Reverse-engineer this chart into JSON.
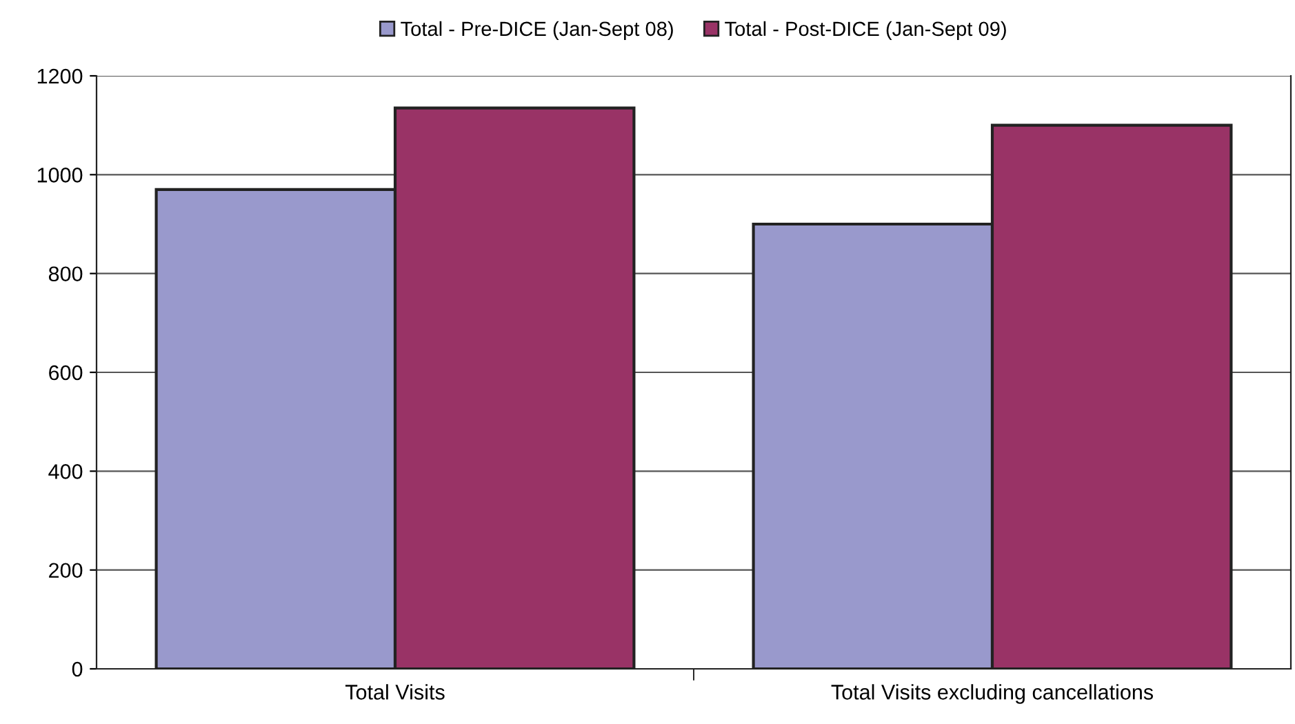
{
  "chart_data": {
    "type": "bar",
    "categories": [
      "Total Visits",
      "Total Visits excluding cancellations"
    ],
    "series": [
      {
        "name": "Total - Pre-DICE (Jan-Sept 08)",
        "color": "#9999cc",
        "values": [
          970,
          900
        ]
      },
      {
        "name": "Total - Post-DICE (Jan-Sept 09)",
        "color": "#993366",
        "values": [
          1135,
          1100
        ]
      }
    ],
    "ylim": [
      0,
      1200
    ],
    "yticks": [
      0,
      200,
      400,
      600,
      800,
      1000,
      1200
    ],
    "grid": "y",
    "legend": "top"
  }
}
